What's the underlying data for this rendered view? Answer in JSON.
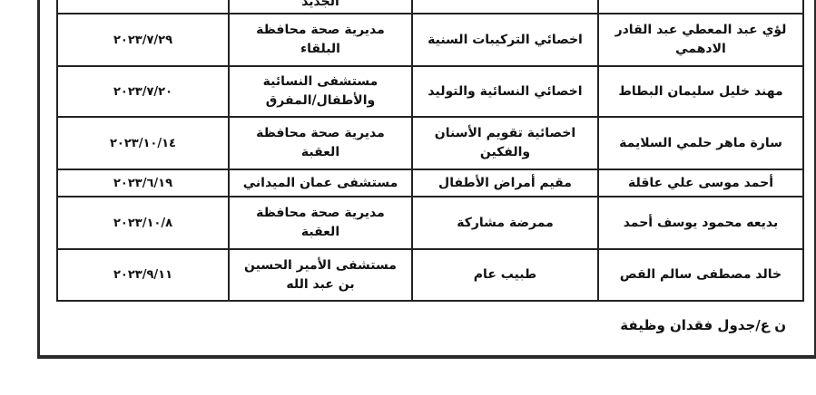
{
  "partial_row": {
    "location": "الجديد"
  },
  "rows": [
    {
      "name": "لؤي عبد المعطي عبد القادر الادهمي",
      "job": "اخصائي التركيبات السنية",
      "location": "مديرية صحة محافظة البلقاء",
      "date": "٢٠٢٣/٧/٢٩"
    },
    {
      "name": "مهند خليل سليمان البطاط",
      "job": "اخصائي النسائية والتوليد",
      "location": "مستشفى النسائية والأطفال/المفرق",
      "date": "٢٠٢٣/٧/٢٠"
    },
    {
      "name": "سارة ماهر حلمي السلايمة",
      "job": "اخصائية تقويم الأسنان والفكين",
      "location": "مديرية صحة محافظة العقبة",
      "date": "٢٠٢٣/١٠/١٤"
    },
    {
      "name": "أحمد موسى علي عاقلة",
      "job": "مقيم أمراض الأطفال",
      "location": "مستشفى عمان الميداني",
      "date": "٢٠٢٣/٦/١٩"
    },
    {
      "name": "بديعه محمود يوسف أحمد",
      "job": "ممرضة مشاركة",
      "location": "مديرية صحة محافظة العقبة",
      "date": "٢٠٢٣/١٠/٨"
    },
    {
      "name": "خالد مصطفى سالم القص",
      "job": "طبيب عام",
      "location": "مستشفى الأمير الحسين بن عبد الله",
      "date": "٢٠٢٣/٩/١١"
    }
  ],
  "footer_note": "ن ع/جدول فقدان وظيفة"
}
